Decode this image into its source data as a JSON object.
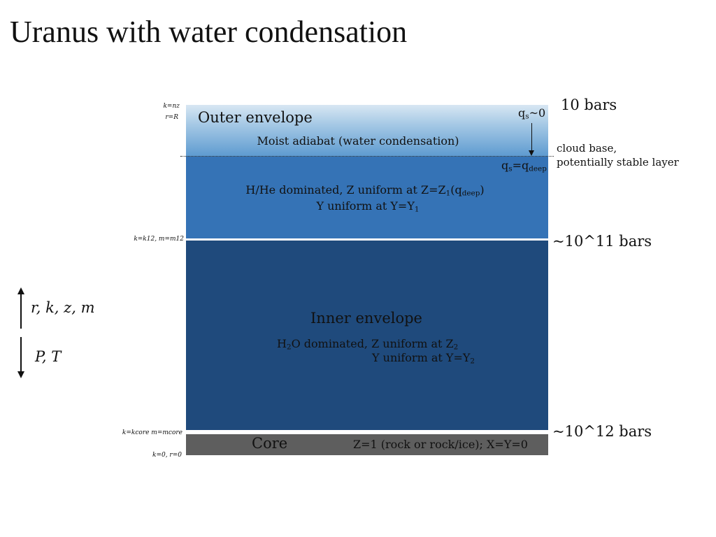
{
  "title": "Uranus with water condensation",
  "layers": {
    "outer": {
      "name": "Outer envelope",
      "moist": "Moist adiabat (water condensation)",
      "qs_top": "q",
      "qs_top_sub": "s",
      "qs_top_val": "~0",
      "qs_bottom": "q",
      "qs_bottom_sub": "s",
      "qs_bottom_eq": "=q",
      "qs_bottom_sub2": "deep",
      "line1_a": "H/He dominated, Z uniform at Z=Z",
      "line1_sub": "1",
      "line1_b": "(q",
      "line1_sub2": "deep",
      "line1_c": ")",
      "line2_a": "Y uniform at Y=Y",
      "line2_sub": "1"
    },
    "inner": {
      "name": "Inner envelope",
      "line1_a": "H",
      "line1_sub": "2",
      "line1_b": "O dominated, Z uniform at Z",
      "line1_sub2": "2",
      "line2_a": "Y uniform at Y=Y",
      "line2_sub": "2"
    },
    "core": {
      "name": "Core",
      "desc": "Z=1 (rock or rock/ice); X=Y=0"
    }
  },
  "pressures": {
    "top": "10 bars",
    "cloud1": "cloud base,",
    "cloud2": "potentially stable layer",
    "middle": "~10^11 bars",
    "bottom": "~10^12 bars"
  },
  "index_labels": {
    "top1": "k=nz",
    "top2": "r=R",
    "middle": "k=k12, m=m12",
    "core_top": "k=kcore m=mcore",
    "bottom": "k=0, r=0"
  },
  "axis": {
    "up": "r, k, z, m",
    "down": "P, T"
  }
}
